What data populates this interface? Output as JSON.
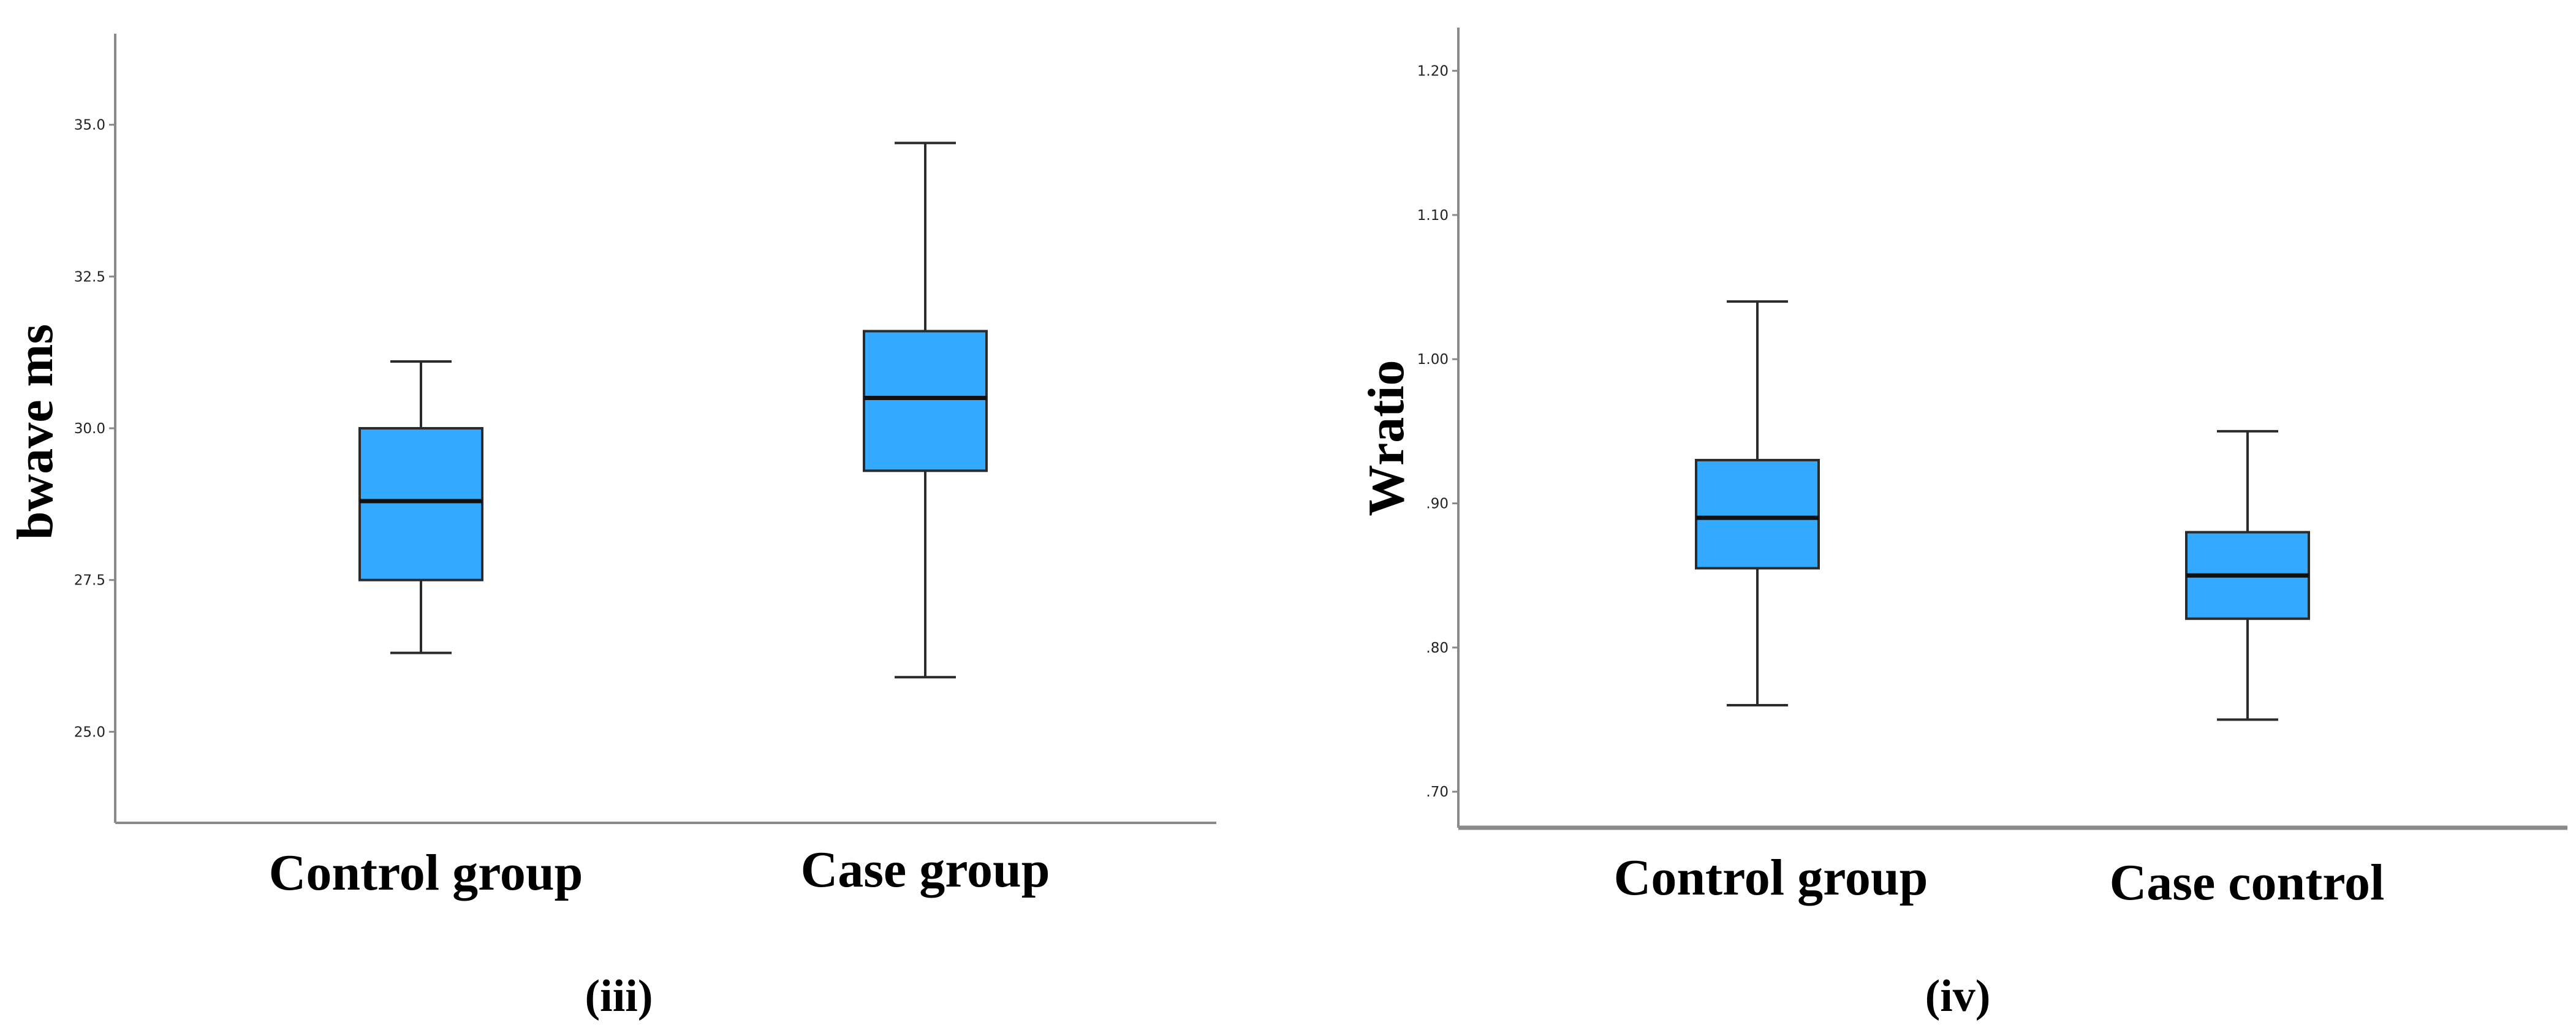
{
  "chart_data": [
    {
      "type": "boxplot",
      "panel_label": "(iii)",
      "ylabel": "bwave ms",
      "ylim": [
        23.5,
        36.5
      ],
      "yticks": [
        25.0,
        27.5,
        30.0,
        32.5,
        35.0
      ],
      "ytick_labels": [
        "25.0",
        "27.5",
        "30.0",
        "32.5",
        "35.0"
      ],
      "categories": [
        "Control group",
        "Case group"
      ],
      "boxes": [
        {
          "min": 26.3,
          "q1": 27.5,
          "median": 28.8,
          "q3": 30.0,
          "max": 31.1
        },
        {
          "min": 25.9,
          "q1": 29.3,
          "median": 30.5,
          "q3": 31.6,
          "max": 34.7
        }
      ]
    },
    {
      "type": "boxplot",
      "panel_label": "(iv)",
      "ylabel": "Wratio",
      "ylim": [
        0.675,
        1.23
      ],
      "yticks": [
        0.7,
        0.8,
        0.9,
        1.0,
        1.1,
        1.2
      ],
      "ytick_labels": [
        ".70",
        ".80",
        ".90",
        "1.00",
        "1.10",
        "1.20"
      ],
      "categories": [
        "Control group",
        "Case control"
      ],
      "boxes": [
        {
          "min": 0.76,
          "q1": 0.855,
          "median": 0.89,
          "q3": 0.93,
          "max": 1.04
        },
        {
          "min": 0.75,
          "q1": 0.82,
          "median": 0.85,
          "q3": 0.88,
          "max": 0.95
        }
      ]
    }
  ],
  "colors": {
    "box_fill": "#33AAFF",
    "box_edge": "#2b2b2b",
    "axis": "#8a8a8a"
  }
}
